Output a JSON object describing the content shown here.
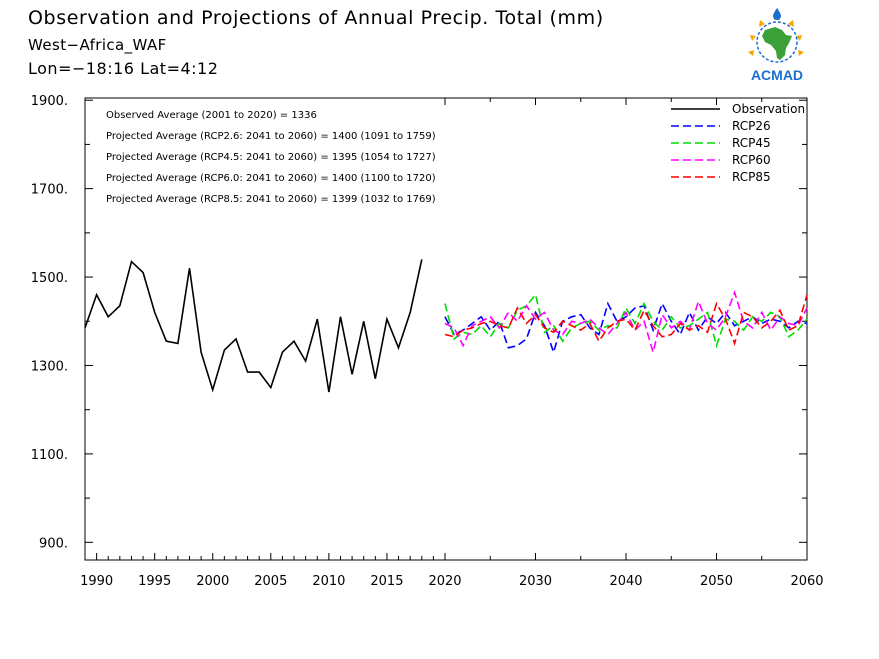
{
  "header": {
    "title": "Observation and Projections of Annual Precip. Total (mm)",
    "region": "West−Africa_WAF",
    "coords": "Lon=−18:16   Lat=4:12"
  },
  "logo": {
    "text": "ACMAD"
  },
  "chart_data": {
    "type": "line",
    "xlim": [
      1989,
      2060
    ],
    "ylim": [
      860,
      1905
    ],
    "x_ticks": [
      1990,
      1995,
      2000,
      2005,
      2010,
      2015,
      2020,
      2030,
      2040,
      2050,
      2060
    ],
    "y_ticks": [
      900,
      1100,
      1300,
      1500,
      1700,
      1900
    ],
    "y_tick_labels": [
      "900.",
      "1100.",
      "1300.",
      "1500.",
      "1700.",
      "1900."
    ],
    "grid": false,
    "legend_position": "top-right",
    "annotations": [
      "Observed Average (2001 to 2020) = 1336",
      "Projected Average (RCP2.6: 2041 to 2060) = 1400 (1091 to 1759)",
      "Projected Average (RCP4.5: 2041 to 2060) = 1395 (1054 to 1727)",
      "Projected Average (RCP6.0: 2041 to 2060) = 1400 (1100 to 1720)",
      "Projected Average (RCP8.5: 2041 to 2060) = 1399 (1032 to 1769)"
    ],
    "series": [
      {
        "name": "Observation",
        "color": "#000000",
        "dash": "solid",
        "x": [
          1989,
          1990,
          1991,
          1992,
          1993,
          1994,
          1995,
          1996,
          1997,
          1998,
          1999,
          2000,
          2001,
          2002,
          2003,
          2004,
          2005,
          2006,
          2007,
          2008,
          2009,
          2010,
          2011,
          2012,
          2013,
          2014,
          2015,
          2016,
          2017,
          2018,
          2019,
          2020
        ],
        "values": [
          1385,
          1460,
          1410,
          1435,
          1535,
          1510,
          1420,
          1355,
          1350,
          1520,
          1330,
          1245,
          1335,
          1360,
          1285,
          1285,
          1250,
          1330,
          1355,
          1310,
          1405,
          1240,
          1410,
          1280,
          1400,
          1270,
          1405,
          1340,
          1420,
          1540,
          null,
          null
        ]
      },
      {
        "name": "RCP26",
        "color": "#0000ff",
        "dash": "dashed",
        "x": [
          2020,
          2021,
          2022,
          2023,
          2024,
          2025,
          2026,
          2027,
          2028,
          2029,
          2030,
          2031,
          2032,
          2033,
          2034,
          2035,
          2036,
          2037,
          2038,
          2039,
          2040,
          2041,
          2042,
          2043,
          2044,
          2045,
          2046,
          2047,
          2048,
          2049,
          2050,
          2051,
          2052,
          2053,
          2054,
          2055,
          2056,
          2057,
          2058,
          2059,
          2060
        ],
        "values": [
          1410,
          1370,
          1380,
          1395,
          1410,
          1380,
          1400,
          1340,
          1345,
          1360,
          1420,
          1390,
          1330,
          1400,
          1410,
          1415,
          1385,
          1370,
          1440,
          1400,
          1410,
          1430,
          1435,
          1380,
          1440,
          1400,
          1370,
          1420,
          1380,
          1410,
          1395,
          1420,
          1390,
          1400,
          1410,
          1395,
          1405,
          1400,
          1385,
          1400,
          1395
        ]
      },
      {
        "name": "RCP45",
        "color": "#00dd00",
        "dash": "dashed",
        "x": [
          2020,
          2021,
          2022,
          2023,
          2024,
          2025,
          2026,
          2027,
          2028,
          2029,
          2030,
          2031,
          2032,
          2033,
          2034,
          2035,
          2036,
          2037,
          2038,
          2039,
          2040,
          2041,
          2042,
          2043,
          2044,
          2045,
          2046,
          2047,
          2048,
          2049,
          2050,
          2051,
          2052,
          2053,
          2054,
          2055,
          2056,
          2057,
          2058,
          2059,
          2060
        ],
        "values": [
          1440,
          1360,
          1375,
          1370,
          1390,
          1365,
          1395,
          1385,
          1425,
          1435,
          1460,
          1375,
          1390,
          1355,
          1385,
          1395,
          1400,
          1380,
          1390,
          1385,
          1430,
          1395,
          1440,
          1400,
          1380,
          1410,
          1385,
          1390,
          1405,
          1420,
          1345,
          1405,
          1400,
          1380,
          1410,
          1400,
          1420,
          1410,
          1365,
          1380,
          1405
        ]
      },
      {
        "name": "RCP60",
        "color": "#ff00ff",
        "dash": "dashed",
        "x": [
          2020,
          2021,
          2022,
          2023,
          2024,
          2025,
          2026,
          2027,
          2028,
          2029,
          2030,
          2031,
          2032,
          2033,
          2034,
          2035,
          2036,
          2037,
          2038,
          2039,
          2040,
          2041,
          2042,
          2043,
          2044,
          2045,
          2046,
          2047,
          2048,
          2049,
          2050,
          2051,
          2052,
          2053,
          2054,
          2055,
          2056,
          2057,
          2058,
          2059,
          2060
        ],
        "values": [
          1395,
          1385,
          1345,
          1390,
          1400,
          1410,
          1385,
          1420,
          1400,
          1435,
          1405,
          1420,
          1380,
          1370,
          1400,
          1395,
          1405,
          1385,
          1370,
          1395,
          1420,
          1380,
          1400,
          1330,
          1415,
          1385,
          1400,
          1380,
          1445,
          1395,
          1380,
          1410,
          1465,
          1400,
          1385,
          1420,
          1380,
          1410,
          1395,
          1390,
          1430
        ]
      },
      {
        "name": "RCP85",
        "color": "#ff0000",
        "dash": "dashed",
        "x": [
          2020,
          2021,
          2022,
          2023,
          2024,
          2025,
          2026,
          2027,
          2028,
          2029,
          2030,
          2031,
          2032,
          2033,
          2034,
          2035,
          2036,
          2037,
          2038,
          2039,
          2040,
          2041,
          2042,
          2043,
          2044,
          2045,
          2046,
          2047,
          2048,
          2049,
          2050,
          2051,
          2052,
          2053,
          2054,
          2055,
          2056,
          2057,
          2058,
          2059,
          2060
        ],
        "values": [
          1370,
          1365,
          1380,
          1385,
          1395,
          1400,
          1390,
          1385,
          1430,
          1395,
          1415,
          1385,
          1375,
          1400,
          1390,
          1380,
          1395,
          1355,
          1385,
          1400,
          1405,
          1380,
          1425,
          1390,
          1365,
          1370,
          1395,
          1380,
          1390,
          1375,
          1440,
          1405,
          1350,
          1420,
          1410,
          1385,
          1400,
          1425,
          1380,
          1390,
          1460
        ]
      }
    ]
  }
}
